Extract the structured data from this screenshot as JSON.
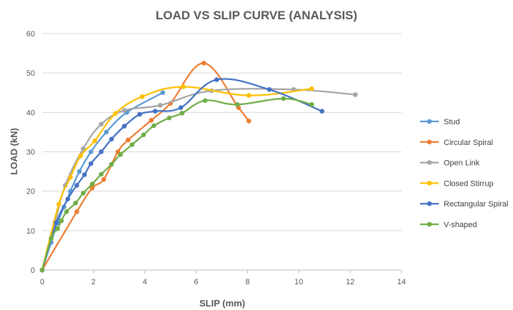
{
  "chart_data": {
    "type": "scatter",
    "title": "LOAD VS SLIP CURVE (ANALYSIS)",
    "xlabel": "SLIP (mm)",
    "ylabel": "LOAD (kN)",
    "xlim": [
      0,
      14
    ],
    "ylim": [
      0,
      60
    ],
    "xticks": [
      0,
      2,
      4,
      6,
      8,
      10,
      12,
      14
    ],
    "yticks": [
      0,
      10,
      20,
      30,
      40,
      50,
      60
    ],
    "grid": "horizontal",
    "legend_position": "right",
    "series": [
      {
        "name": "Stud",
        "color": "#5b9bd5",
        "x": [
          0,
          0.35,
          0.6,
          0.85,
          1.1,
          1.45,
          1.9,
          2.5,
          3.3,
          4.7
        ],
        "y": [
          0,
          7,
          12,
          16,
          20,
          25,
          30,
          35,
          40,
          45
        ]
      },
      {
        "name": "Circular Spiral",
        "color": "#ed7d31",
        "x": [
          0,
          1.35,
          1.95,
          2.4,
          2.95,
          3.35,
          4.25,
          5.0,
          6.3,
          7.65,
          8.05
        ],
        "y": [
          0,
          14.8,
          20.8,
          23.0,
          30.0,
          33.0,
          38.0,
          42.3,
          52.5,
          41.2,
          37.8
        ]
      },
      {
        "name": "Open Link",
        "color": "#a5a5a5",
        "x": [
          0,
          0.5,
          0.9,
          1.6,
          2.3,
          3.2,
          4.6,
          6.6,
          9.8,
          12.2
        ],
        "y": [
          0,
          12,
          21.5,
          30.8,
          37.0,
          40.5,
          41.8,
          45.5,
          45.8,
          44.5
        ]
      },
      {
        "name": "Closed Stirrup",
        "color": "#ffc000",
        "x": [
          0,
          0.65,
          1.1,
          1.5,
          2.05,
          2.85,
          3.9,
          5.5,
          8.05,
          10.5
        ],
        "y": [
          0,
          16.7,
          23.5,
          29.0,
          32.8,
          39.7,
          44.0,
          46.5,
          44.3,
          46.0
        ]
      },
      {
        "name": "Rectangular Spiral",
        "color": "#4472c4",
        "x": [
          0,
          0.55,
          1.0,
          1.35,
          1.65,
          1.9,
          2.3,
          2.7,
          3.2,
          3.8,
          4.4,
          5.4,
          6.8,
          8.85,
          10.9
        ],
        "y": [
          0,
          12,
          18,
          21.5,
          24.2,
          27.0,
          30.0,
          33.2,
          36.5,
          39.5,
          40.3,
          41.2,
          48.3,
          45.8,
          40.3
        ]
      },
      {
        "name": "V-shaped",
        "color": "#70ad47",
        "x": [
          0,
          0.35,
          0.6,
          0.75,
          0.95,
          1.3,
          1.6,
          1.95,
          2.3,
          2.7,
          3.05,
          3.5,
          3.95,
          4.35,
          4.95,
          5.45,
          6.35,
          7.6,
          9.4,
          10.5
        ],
        "y": [
          0,
          8,
          10.5,
          12.5,
          14.8,
          17.0,
          19.5,
          21.8,
          24.3,
          26.8,
          29.3,
          31.8,
          34.3,
          36.6,
          38.6,
          39.8,
          43.0,
          42.0,
          43.5,
          42.0
        ]
      }
    ]
  }
}
